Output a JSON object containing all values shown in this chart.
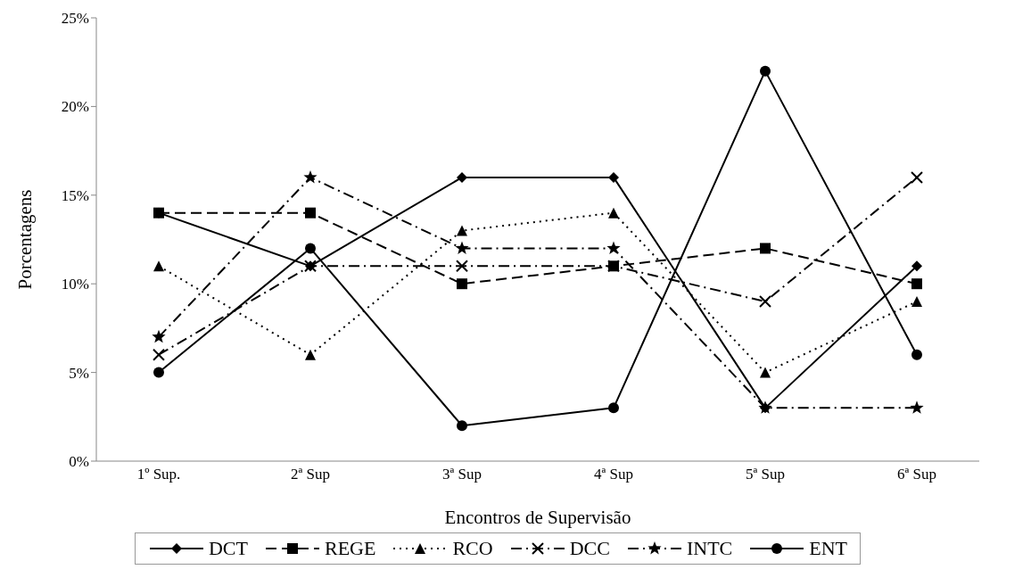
{
  "chart_data": {
    "type": "line",
    "xlabel": "Encontros de Supervisão",
    "ylabel": "Porcentagens",
    "categories": [
      "1º Sup.",
      "2ª Sup",
      "3ª Sup",
      "4ª Sup",
      "5ª Sup",
      "6ª Sup"
    ],
    "ylim": [
      0,
      25
    ],
    "yticks": [
      {
        "value": 0,
        "label": "0%"
      },
      {
        "value": 5,
        "label": "5%"
      },
      {
        "value": 10,
        "label": "10%"
      },
      {
        "value": 15,
        "label": "15%"
      },
      {
        "value": 20,
        "label": "20%"
      },
      {
        "value": 25,
        "label": "25%"
      }
    ],
    "grid": false,
    "legend": "bottom",
    "series": [
      {
        "name": "DCT",
        "color": "#000000",
        "marker": "diamond",
        "line_style": "solid",
        "values": [
          14,
          11,
          16,
          16,
          3,
          11
        ]
      },
      {
        "name": "REGE",
        "color": "#000000",
        "marker": "square",
        "line_style": "dashed",
        "values": [
          14,
          14,
          10,
          11,
          12,
          10
        ]
      },
      {
        "name": "RCO",
        "color": "#000000",
        "marker": "triangle",
        "line_style": "dotted",
        "values": [
          11,
          6,
          13,
          14,
          5,
          9
        ]
      },
      {
        "name": "DCC",
        "color": "#000000",
        "marker": "cross",
        "line_style": "dashdot",
        "values": [
          6,
          11,
          11,
          11,
          9,
          16
        ]
      },
      {
        "name": "INTC",
        "color": "#000000",
        "marker": "star",
        "line_style": "dashdot",
        "values": [
          7,
          16,
          12,
          12,
          3,
          3
        ]
      },
      {
        "name": "ENT",
        "color": "#000000",
        "marker": "circle",
        "line_style": "solid",
        "values": [
          5,
          12,
          2,
          3,
          22,
          6
        ]
      }
    ]
  }
}
